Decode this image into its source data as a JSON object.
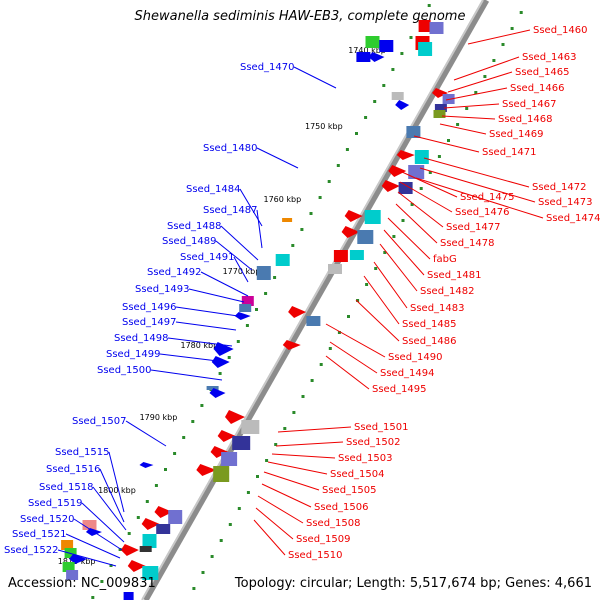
{
  "header": {
    "title": "Shewanella sediminis HAW-EB3, complete genome",
    "accession": "Accession: NC_009831",
    "stats": "Topology: circular; Length: 5,517,674 bp; Genes: 4,661"
  },
  "ruler_ticks": [
    "1740 kbp",
    "1750 kbp",
    "1760 kbp",
    "1770 kbp",
    "1780 kbp",
    "1790 kbp",
    "1800 kbp",
    "1810 kbp"
  ],
  "reverse_genes": [
    "Ssed_1470",
    "Ssed_1480",
    "Ssed_1484",
    "Ssed_1487",
    "Ssed_1488",
    "Ssed_1489",
    "Ssed_1491",
    "Ssed_1492",
    "Ssed_1493",
    "Ssed_1496",
    "Ssed_1497",
    "Ssed_1498",
    "Ssed_1499",
    "Ssed_1500",
    "Ssed_1507",
    "Ssed_1515",
    "Ssed_1516",
    "Ssed_1518",
    "Ssed_1519",
    "Ssed_1520",
    "Ssed_1521",
    "Ssed_1522"
  ],
  "forward_genes": [
    "Ssed_1460",
    "Ssed_1463",
    "Ssed_1465",
    "Ssed_1466",
    "Ssed_1467",
    "Ssed_1468",
    "Ssed_1469",
    "Ssed_1471",
    "Ssed_1472",
    "Ssed_1473",
    "Ssed_1474",
    "Ssed_1475",
    "Ssed_1476",
    "Ssed_1477",
    "Ssed_1478",
    "fabG",
    "Ssed_1481",
    "Ssed_1482",
    "Ssed_1483",
    "Ssed_1485",
    "Ssed_1486",
    "Ssed_1490",
    "Ssed_1494",
    "Ssed_1495",
    "Ssed_1501",
    "Ssed_1502",
    "Ssed_1503",
    "Ssed_1504",
    "Ssed_1505",
    "Ssed_1506",
    "Ssed_1508",
    "Ssed_1509",
    "Ssed_1510"
  ],
  "colors": {
    "reverse": "#0000ee",
    "forward": "#ee0000",
    "backbone": "#8c8c8c",
    "gc_dots": "#2a8a2a"
  }
}
